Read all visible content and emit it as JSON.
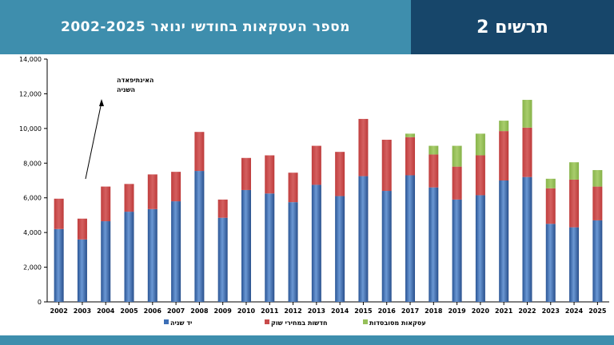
{
  "header": {
    "title": "מספר העסקאות בחודשי ינואר 2002-2025",
    "figure_label": "תרשים 2"
  },
  "colors": {
    "header_bg": "#3e8ead",
    "header_dark": "#17466a",
    "series_used": "#3d6fb6",
    "series_new": "#c84b4b",
    "series_subsidized": "#96c05a"
  },
  "chart_data": {
    "type": "bar",
    "stacked": true,
    "categories": [
      "2002",
      "2003",
      "2004",
      "2005",
      "2006",
      "2007",
      "2008",
      "2009",
      "2010",
      "2011",
      "2012",
      "2013",
      "2014",
      "2015",
      "2016",
      "2017",
      "2018",
      "2019",
      "2020",
      "2021",
      "2022",
      "2023",
      "2024",
      "2025"
    ],
    "series": [
      {
        "name": "יד שניה",
        "color": "#3d6fb6",
        "values": [
          4200,
          3600,
          4650,
          5200,
          5350,
          5800,
          7550,
          4850,
          6450,
          6250,
          5750,
          6750,
          6100,
          7250,
          6400,
          7300,
          6600,
          5900,
          6150,
          7000,
          7200,
          4500,
          4300,
          4700
        ]
      },
      {
        "name": "חדשות במחירי שוק",
        "color": "#c84b4b",
        "values": [
          1750,
          1200,
          2000,
          1600,
          2000,
          1700,
          2250,
          1050,
          1850,
          2200,
          1700,
          2250,
          2550,
          3300,
          2950,
          2200,
          1900,
          1900,
          2300,
          2850,
          2850,
          2050,
          2750,
          1950
        ]
      },
      {
        "name": "עסקאות מסובסדות",
        "color": "#96c05a",
        "values": [
          0,
          0,
          0,
          0,
          0,
          0,
          0,
          0,
          0,
          0,
          0,
          0,
          0,
          0,
          0,
          200,
          500,
          1200,
          1250,
          600,
          1600,
          550,
          1000,
          950
        ]
      }
    ],
    "ylim": [
      0,
      14000
    ],
    "yticks": [
      "0",
      "2,000",
      "4,000",
      "6,000",
      "8,000",
      "10,000",
      "12,000",
      "14,000"
    ],
    "ytick_values": [
      0,
      2000,
      4000,
      6000,
      8000,
      10000,
      12000,
      14000
    ],
    "annotation": {
      "lines": [
        "האינתיפאדה",
        "השניה"
      ],
      "points_to": "2002-2003"
    },
    "legend": [
      {
        "label": "יד שניה",
        "series": 0
      },
      {
        "label": "חדשות במחירי שוק",
        "series": 1
      },
      {
        "label": "עסקאות מסובסדות",
        "series": 2
      }
    ],
    "legend_position": "bottom-center"
  }
}
